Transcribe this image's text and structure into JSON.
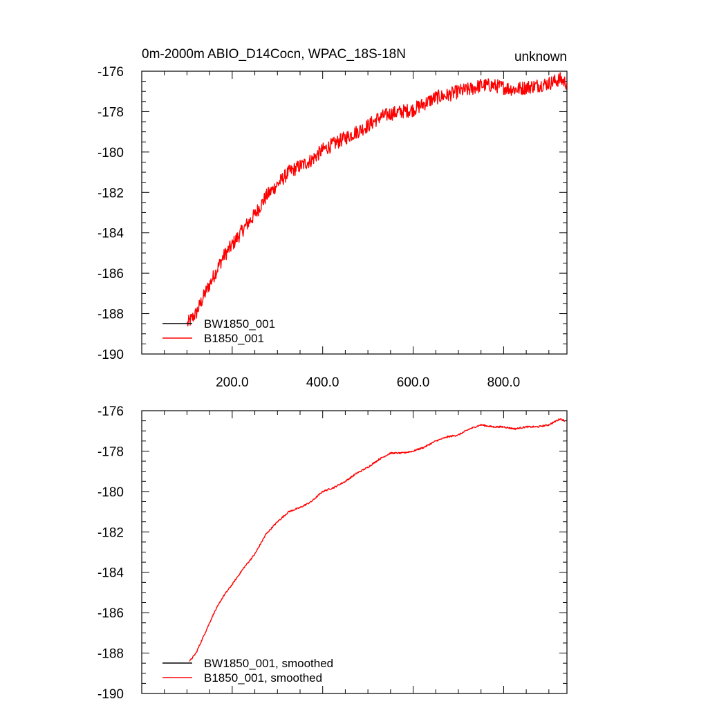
{
  "chart_data": [
    {
      "type": "line",
      "title": "0m-2000m ABIO_D14Cocn, WPAC_18S-18N",
      "right_title": "unknown",
      "xlabel": "",
      "ylabel": "",
      "xlim": [
        0,
        940
      ],
      "ylim": [
        -190,
        -176
      ],
      "x_ticks": [
        200,
        400,
        600,
        800
      ],
      "x_tick_labels": [
        "200.0",
        "400.0",
        "600.0",
        "800.0"
      ],
      "y_ticks": [
        -176,
        -178,
        -180,
        -182,
        -184,
        -186,
        -188,
        -190
      ],
      "y_tick_labels": [
        "-176",
        "-178",
        "-180",
        "-182",
        "-184",
        "-186",
        "-188",
        "-190"
      ],
      "legend_position": "bottom-left",
      "noise": 0.35,
      "series": [
        {
          "name": "BW1850_001",
          "color": "#000000",
          "x": [],
          "y": []
        },
        {
          "name": "B1850_001",
          "color": "#ff0000",
          "x": [
            101,
            120,
            140,
            160,
            180,
            200,
            225,
            250,
            275,
            300,
            325,
            350,
            375,
            400,
            425,
            450,
            475,
            500,
            525,
            550,
            575,
            600,
            625,
            650,
            675,
            700,
            725,
            750,
            775,
            800,
            825,
            850,
            875,
            900,
            925,
            940
          ],
          "y": [
            -188.5,
            -188.0,
            -187.0,
            -186.1,
            -185.2,
            -184.6,
            -183.8,
            -183.1,
            -182.2,
            -181.6,
            -181.0,
            -180.7,
            -180.4,
            -179.9,
            -179.6,
            -179.3,
            -179.0,
            -178.7,
            -178.3,
            -178.1,
            -178.0,
            -177.9,
            -177.6,
            -177.3,
            -177.2,
            -177.0,
            -176.9,
            -176.7,
            -176.7,
            -176.8,
            -176.9,
            -176.8,
            -176.7,
            -176.6,
            -176.4,
            -176.6
          ]
        }
      ]
    },
    {
      "type": "line",
      "title": "",
      "xlabel": "",
      "ylabel": "",
      "xlim": [
        0,
        940
      ],
      "ylim": [
        -190,
        -176
      ],
      "x_ticks": [
        200,
        400,
        600,
        800
      ],
      "x_tick_labels": [],
      "y_ticks": [
        -176,
        -178,
        -180,
        -182,
        -184,
        -186,
        -188,
        -190
      ],
      "y_tick_labels": [
        "-176",
        "-178",
        "-180",
        "-182",
        "-184",
        "-186",
        "-188",
        "-190"
      ],
      "legend_position": "bottom-left",
      "noise": 0.04,
      "series": [
        {
          "name": "BW1850_001, smoothed",
          "color": "#000000",
          "x": [],
          "y": []
        },
        {
          "name": "B1850_001, smoothed",
          "color": "#ff0000",
          "x": [
            106,
            120,
            140,
            160,
            180,
            200,
            225,
            250,
            275,
            300,
            325,
            350,
            375,
            400,
            425,
            450,
            475,
            500,
            525,
            550,
            575,
            600,
            625,
            650,
            675,
            700,
            725,
            750,
            775,
            800,
            825,
            850,
            875,
            900,
            925,
            935
          ],
          "y": [
            -188.4,
            -188.0,
            -187.0,
            -186.0,
            -185.2,
            -184.6,
            -183.8,
            -183.1,
            -182.1,
            -181.5,
            -181.0,
            -180.8,
            -180.5,
            -180.0,
            -179.8,
            -179.5,
            -179.1,
            -178.8,
            -178.4,
            -178.1,
            -178.1,
            -178.0,
            -177.8,
            -177.5,
            -177.3,
            -177.2,
            -176.9,
            -176.7,
            -176.8,
            -176.8,
            -176.9,
            -176.8,
            -176.8,
            -176.7,
            -176.4,
            -176.5
          ]
        }
      ]
    }
  ]
}
